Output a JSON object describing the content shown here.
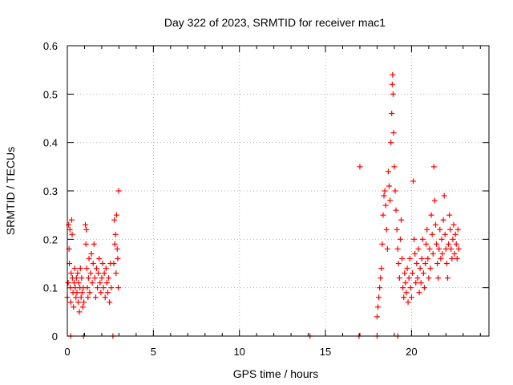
{
  "chart_data": {
    "type": "scatter",
    "title": "Day 322 of 2023, SRMTID for receiver mac1",
    "xlabel": "GPS time / hours",
    "ylabel": "SRMTID / TECUs",
    "xlim": [
      0,
      24.5
    ],
    "ylim": [
      0,
      0.6
    ],
    "xticks": [
      0,
      5,
      10,
      15,
      20
    ],
    "yticks": [
      0,
      0.1,
      0.2,
      0.3,
      0.4,
      0.5,
      0.6
    ],
    "ytick_labels": [
      "0",
      "0.1",
      "0.2",
      "0.3",
      "0.4",
      "0.5",
      "0.6"
    ],
    "grid": true,
    "marker": "+",
    "color": "#ff0000",
    "series": [
      {
        "name": "SRMTID",
        "points": [
          [
            0.0,
            0.08
          ],
          [
            0.05,
            0.11
          ],
          [
            0.08,
            0.23
          ],
          [
            0.1,
            0.18
          ],
          [
            0.12,
            0.15
          ],
          [
            0.15,
            0.22
          ],
          [
            0.18,
            0.1
          ],
          [
            0.2,
            0.07
          ],
          [
            0.22,
            0.13
          ],
          [
            0.25,
            0.24
          ],
          [
            0.28,
            0.21
          ],
          [
            0.3,
            0.12
          ],
          [
            0.33,
            0.09
          ],
          [
            0.36,
            0.06
          ],
          [
            0.4,
            0.11
          ],
          [
            0.43,
            0.14
          ],
          [
            0.46,
            0.1
          ],
          [
            0.5,
            0.08
          ],
          [
            0.53,
            0.12
          ],
          [
            0.56,
            0.09
          ],
          [
            0.6,
            0.13
          ],
          [
            0.63,
            0.07
          ],
          [
            0.66,
            0.11
          ],
          [
            0.7,
            0.05
          ],
          [
            0.73,
            0.1
          ],
          [
            0.76,
            0.14
          ],
          [
            0.8,
            0.08
          ],
          [
            0.83,
            0.12
          ],
          [
            0.86,
            0.09
          ],
          [
            0.9,
            0.06
          ],
          [
            0.93,
            0.1
          ],
          [
            0.96,
            0.07
          ],
          [
            1.05,
            0.23
          ],
          [
            1.08,
            0.19
          ],
          [
            1.1,
            0.22
          ],
          [
            1.13,
            0.14
          ],
          [
            1.16,
            0.1
          ],
          [
            1.2,
            0.08
          ],
          [
            1.23,
            0.12
          ],
          [
            1.26,
            0.16
          ],
          [
            1.3,
            0.09
          ],
          [
            1.35,
            0.13
          ],
          [
            1.4,
            0.17
          ],
          [
            1.45,
            0.11
          ],
          [
            1.5,
            0.15
          ],
          [
            1.55,
            0.19
          ],
          [
            1.6,
            0.12
          ],
          [
            1.65,
            0.08
          ],
          [
            1.7,
            0.14
          ],
          [
            1.75,
            0.1
          ],
          [
            1.8,
            0.13
          ],
          [
            1.85,
            0.16
          ],
          [
            1.9,
            0.11
          ],
          [
            1.95,
            0.09
          ],
          [
            2.0,
            0.12
          ],
          [
            2.05,
            0.15
          ],
          [
            2.1,
            0.1
          ],
          [
            2.15,
            0.13
          ],
          [
            2.2,
            0.08
          ],
          [
            2.25,
            0.14
          ],
          [
            2.3,
            0.11
          ],
          [
            2.35,
            0.09
          ],
          [
            2.4,
            0.12
          ],
          [
            2.45,
            0.07
          ],
          [
            2.5,
            0.15
          ],
          [
            2.55,
            0.1
          ],
          [
            2.7,
            0.15
          ],
          [
            2.73,
            0.24
          ],
          [
            2.76,
            0.19
          ],
          [
            2.8,
            0.21
          ],
          [
            2.83,
            0.13
          ],
          [
            2.86,
            0.25
          ],
          [
            2.9,
            0.18
          ],
          [
            2.93,
            0.16
          ],
          [
            2.96,
            0.1
          ],
          [
            2.98,
            0.3
          ],
          [
            17.0,
            0.35
          ],
          [
            18.0,
            0.04
          ],
          [
            18.05,
            0.06
          ],
          [
            18.1,
            0.08
          ],
          [
            18.15,
            0.1
          ],
          [
            18.2,
            0.12
          ],
          [
            18.25,
            0.14
          ],
          [
            18.3,
            0.19
          ],
          [
            18.35,
            0.25
          ],
          [
            18.4,
            0.29
          ],
          [
            18.45,
            0.3
          ],
          [
            18.5,
            0.27
          ],
          [
            18.55,
            0.22
          ],
          [
            18.6,
            0.18
          ],
          [
            18.65,
            0.34
          ],
          [
            18.7,
            0.31
          ],
          [
            18.75,
            0.28
          ],
          [
            18.8,
            0.4
          ],
          [
            18.85,
            0.46
          ],
          [
            18.88,
            0.52
          ],
          [
            18.9,
            0.54
          ],
          [
            18.93,
            0.5
          ],
          [
            18.96,
            0.42
          ],
          [
            19.0,
            0.35
          ],
          [
            19.05,
            0.3
          ],
          [
            19.1,
            0.26
          ],
          [
            19.15,
            0.22
          ],
          [
            19.2,
            0.18
          ],
          [
            19.25,
            0.15
          ],
          [
            19.3,
            0.12
          ],
          [
            19.35,
            0.2
          ],
          [
            19.4,
            0.24
          ],
          [
            19.45,
            0.16
          ],
          [
            19.5,
            0.1
          ],
          [
            19.55,
            0.08
          ],
          [
            19.6,
            0.13
          ],
          [
            19.65,
            0.11
          ],
          [
            19.7,
            0.09
          ],
          [
            19.75,
            0.14
          ],
          [
            19.8,
            0.07
          ],
          [
            19.85,
            0.12
          ],
          [
            19.9,
            0.16
          ],
          [
            19.95,
            0.1
          ],
          [
            20.0,
            0.08
          ],
          [
            20.05,
            0.13
          ],
          [
            20.1,
            0.32
          ],
          [
            20.15,
            0.2
          ],
          [
            20.2,
            0.17
          ],
          [
            20.25,
            0.11
          ],
          [
            20.3,
            0.15
          ],
          [
            20.35,
            0.12
          ],
          [
            20.4,
            0.18
          ],
          [
            20.45,
            0.09
          ],
          [
            20.5,
            0.14
          ],
          [
            20.55,
            0.11
          ],
          [
            20.6,
            0.16
          ],
          [
            20.65,
            0.2
          ],
          [
            20.7,
            0.13
          ],
          [
            20.75,
            0.1
          ],
          [
            20.8,
            0.15
          ],
          [
            20.85,
            0.19
          ],
          [
            20.9,
            0.22
          ],
          [
            20.95,
            0.16
          ],
          [
            21.0,
            0.12
          ],
          [
            21.05,
            0.18
          ],
          [
            21.1,
            0.14
          ],
          [
            21.15,
            0.25
          ],
          [
            21.2,
            0.21
          ],
          [
            21.25,
            0.17
          ],
          [
            21.3,
            0.35
          ],
          [
            21.35,
            0.28
          ],
          [
            21.4,
            0.23
          ],
          [
            21.45,
            0.19
          ],
          [
            21.5,
            0.15
          ],
          [
            21.55,
            0.12
          ],
          [
            21.6,
            0.18
          ],
          [
            21.65,
            0.22
          ],
          [
            21.7,
            0.16
          ],
          [
            21.75,
            0.2
          ],
          [
            21.8,
            0.17
          ],
          [
            21.85,
            0.24
          ],
          [
            21.9,
            0.29
          ],
          [
            21.95,
            0.21
          ],
          [
            22.0,
            0.18
          ],
          [
            22.05,
            0.15
          ],
          [
            22.1,
            0.12
          ],
          [
            22.15,
            0.19
          ],
          [
            22.2,
            0.25
          ],
          [
            22.25,
            0.22
          ],
          [
            22.3,
            0.18
          ],
          [
            22.35,
            0.16
          ],
          [
            22.4,
            0.2
          ],
          [
            22.45,
            0.23
          ],
          [
            22.5,
            0.17
          ],
          [
            22.55,
            0.21
          ],
          [
            22.6,
            0.19
          ],
          [
            22.65,
            0.16
          ],
          [
            22.7,
            0.22
          ],
          [
            22.75,
            0.18
          ]
        ]
      }
    ],
    "zero_points_x": [
      0.2,
      0.95,
      2.65,
      14.1,
      16.95,
      18.0,
      19.2
    ]
  }
}
